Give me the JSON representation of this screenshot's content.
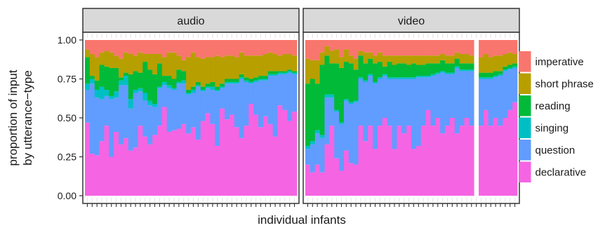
{
  "chart_data": {
    "type": "bar",
    "stacked": true,
    "panels": [
      {
        "label": "audio",
        "n_bars": 44,
        "missing_bars": [],
        "series": [
          {
            "name": "declarative",
            "values": [
              0.47,
              0.27,
              0.26,
              0.35,
              0.45,
              0.25,
              0.41,
              0.33,
              0.37,
              0.29,
              0.31,
              0.45,
              0.38,
              0.33,
              0.39,
              0.45,
              0.57,
              0.41,
              0.42,
              0.43,
              0.46,
              0.4,
              0.44,
              0.36,
              0.48,
              0.53,
              0.46,
              0.32,
              0.56,
              0.49,
              0.52,
              0.44,
              0.37,
              0.45,
              0.59,
              0.52,
              0.44,
              0.51,
              0.46,
              0.38,
              0.58,
              0.55,
              0.48,
              0.54
            ]
          },
          {
            "name": "question",
            "values": [
              0.21,
              0.45,
              0.37,
              0.27,
              0.19,
              0.37,
              0.22,
              0.38,
              0.34,
              0.27,
              0.35,
              0.22,
              0.23,
              0.25,
              0.18,
              0.24,
              0.14,
              0.28,
              0.26,
              0.29,
              0.26,
              0.25,
              0.22,
              0.34,
              0.19,
              0.16,
              0.22,
              0.35,
              0.13,
              0.23,
              0.2,
              0.28,
              0.38,
              0.28,
              0.13,
              0.21,
              0.3,
              0.23,
              0.31,
              0.39,
              0.2,
              0.23,
              0.31,
              0.24
            ]
          },
          {
            "name": "singing",
            "values": [
              0.04,
              0.03,
              0.05,
              0.08,
              0.04,
              0.02,
              0.04,
              0.03,
              0.06,
              0.06,
              0.02,
              0.02,
              0.05,
              0.03,
              0.02,
              0.01,
              0.02,
              0.02,
              0.01,
              0.01,
              0.02,
              0.01,
              0.02,
              0.01,
              0.01,
              0.01,
              0.02,
              0.01,
              0.01,
              0.01,
              0.01,
              0.01,
              0.01,
              0.01,
              0.01,
              0.01,
              0.01,
              0.01,
              0.01,
              0.01,
              0.01,
              0.01,
              0.01,
              0.01
            ]
          },
          {
            "name": "reading",
            "values": [
              0.17,
              0.02,
              0.06,
              0.14,
              0.15,
              0.18,
              0.15,
              0.02,
              0.02,
              0.16,
              0.12,
              0.1,
              0.2,
              0.2,
              0.19,
              0.15,
              0.04,
              0.06,
              0.06,
              0.08,
              0.06,
              0.02,
              0.02,
              0.02,
              0.02,
              0.02,
              0.03,
              0.02,
              0.02,
              0.02,
              0.02,
              0.02,
              0.02,
              0.02,
              0.02,
              0.02,
              0.02,
              0.02,
              0.02,
              0.02,
              0.01,
              0.01,
              0.01,
              0.01
            ]
          },
          {
            "name": "short phrase",
            "values": [
              0.05,
              0.14,
              0.15,
              0.08,
              0.1,
              0.1,
              0.08,
              0.12,
              0.13,
              0.13,
              0.1,
              0.13,
              0.05,
              0.1,
              0.13,
              0.06,
              0.12,
              0.15,
              0.17,
              0.09,
              0.07,
              0.21,
              0.22,
              0.16,
              0.18,
              0.17,
              0.16,
              0.2,
              0.17,
              0.15,
              0.15,
              0.14,
              0.14,
              0.14,
              0.15,
              0.14,
              0.13,
              0.14,
              0.12,
              0.11,
              0.1,
              0.11,
              0.1,
              0.1
            ]
          },
          {
            "name": "imperative",
            "values": [
              0.06,
              0.09,
              0.11,
              0.08,
              0.07,
              0.08,
              0.1,
              0.12,
              0.08,
              0.09,
              0.1,
              0.08,
              0.09,
              0.09,
              0.09,
              0.09,
              0.11,
              0.08,
              0.08,
              0.1,
              0.13,
              0.11,
              0.08,
              0.11,
              0.12,
              0.11,
              0.11,
              0.1,
              0.11,
              0.1,
              0.1,
              0.11,
              0.08,
              0.1,
              0.1,
              0.1,
              0.1,
              0.09,
              0.08,
              0.09,
              0.1,
              0.09,
              0.09,
              0.1
            ]
          }
        ]
      },
      {
        "label": "video",
        "n_bars": 44,
        "missing_bars": [
          35
        ],
        "series": [
          {
            "name": "declarative",
            "values": [
              0.2,
              0.15,
              0.2,
              0.15,
              0.33,
              0.45,
              0.24,
              0.16,
              0.29,
              0.21,
              0.2,
              0.45,
              0.35,
              0.45,
              0.3,
              0.45,
              0.5,
              0.45,
              0.3,
              0.45,
              0.4,
              0.45,
              0.3,
              0.32,
              0.45,
              0.55,
              0.45,
              0.5,
              0.4,
              0.45,
              0.5,
              0.4,
              0.45,
              0.5,
              0.45,
              0,
              0.45,
              0.55,
              0.45,
              0.5,
              0.45,
              0.5,
              0.55,
              0.6
            ]
          },
          {
            "name": "question",
            "values": [
              0.1,
              0.18,
              0.2,
              0.22,
              0.3,
              0.18,
              0.3,
              0.3,
              0.32,
              0.38,
              0.4,
              0.3,
              0.38,
              0.32,
              0.42,
              0.3,
              0.27,
              0.3,
              0.45,
              0.3,
              0.35,
              0.3,
              0.45,
              0.44,
              0.31,
              0.21,
              0.32,
              0.28,
              0.39,
              0.33,
              0.28,
              0.42,
              0.35,
              0.3,
              0.35,
              0,
              0.3,
              0.2,
              0.3,
              0.26,
              0.32,
              0.3,
              0.26,
              0.22
            ]
          },
          {
            "name": "singing",
            "values": [
              0.02,
              0.02,
              0.02,
              0.02,
              0.02,
              0.02,
              0.01,
              0.01,
              0.01,
              0.01,
              0.01,
              0.01,
              0.01,
              0.01,
              0.01,
              0.01,
              0.01,
              0.01,
              0.01,
              0.01,
              0.01,
              0.01,
              0.01,
              0.01,
              0.01,
              0.01,
              0.01,
              0.01,
              0.01,
              0.01,
              0.01,
              0.01,
              0.01,
              0.01,
              0.01,
              0,
              0.01,
              0.01,
              0.01,
              0.01,
              0.01,
              0.01,
              0.01,
              0.01
            ]
          },
          {
            "name": "reading",
            "values": [
              0.4,
              0.4,
              0.3,
              0.45,
              0.25,
              0.2,
              0.3,
              0.35,
              0.24,
              0.25,
              0.2,
              0.14,
              0.11,
              0.1,
              0.12,
              0.1,
              0.05,
              0.1,
              0.08,
              0.09,
              0.09,
              0.08,
              0.09,
              0.07,
              0.07,
              0.08,
              0.07,
              0.06,
              0.07,
              0.06,
              0.06,
              0.05,
              0.04,
              0.04,
              0.04,
              0,
              0.03,
              0.03,
              0.03,
              0.03,
              0.02,
              0.02,
              0.02,
              0.02
            ]
          },
          {
            "name": "short phrase",
            "values": [
              0.16,
              0.12,
              0.15,
              0.08,
              0.06,
              0.08,
              0.09,
              0.07,
              0.08,
              0.05,
              0.07,
              0.03,
              0.07,
              0.04,
              0.05,
              0.06,
              0.07,
              0.04,
              0.06,
              0.05,
              0.05,
              0.06,
              0.05,
              0.06,
              0.06,
              0.05,
              0.05,
              0.05,
              0.04,
              0.05,
              0.05,
              0.04,
              0.06,
              0.06,
              0.05,
              0,
              0.1,
              0.12,
              0.1,
              0.1,
              0.1,
              0.08,
              0.08,
              0.06
            ]
          },
          {
            "name": "imperative",
            "values": [
              0.12,
              0.13,
              0.13,
              0.08,
              0.04,
              0.07,
              0.06,
              0.11,
              0.06,
              0.1,
              0.12,
              0.07,
              0.08,
              0.08,
              0.1,
              0.08,
              0.1,
              0.1,
              0.1,
              0.1,
              0.1,
              0.1,
              0.1,
              0.1,
              0.1,
              0.1,
              0.1,
              0.1,
              0.09,
              0.1,
              0.1,
              0.08,
              0.09,
              0.09,
              0.1,
              0,
              0.11,
              0.09,
              0.11,
              0.1,
              0.1,
              0.09,
              0.08,
              0.09
            ]
          }
        ]
      }
    ],
    "series_colors": {
      "declarative": "#F564E3",
      "question": "#619CFF",
      "singing": "#00BFC4",
      "reading": "#00BA38",
      "short phrase": "#B79F00",
      "imperative": "#F8766D"
    },
    "legend_order": [
      "imperative",
      "short phrase",
      "reading",
      "singing",
      "question",
      "declarative"
    ],
    "legend_position": "right",
    "ylim": [
      0,
      1
    ],
    "yticks": [
      "0.00",
      "0.25",
      "0.50",
      "0.75",
      "1.00"
    ],
    "xlabel": "individual infants",
    "ylabel": [
      "proportion of input",
      "by utterance−type"
    ],
    "grid": false
  }
}
